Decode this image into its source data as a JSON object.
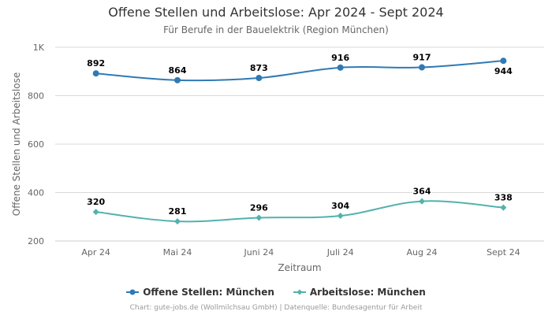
{
  "chart_data": {
    "type": "line",
    "title": "Offene Stellen und Arbeitslose: Apr 2024 - Sept 2024",
    "subtitle": "Für Berufe in der Bauelektrik (Region München)",
    "xlabel": "Zeitraum",
    "ylabel": "Offene Stellen und Arbeitslose",
    "categories": [
      "Apr 24",
      "Mai 24",
      "Juni 24",
      "Juli 24",
      "Aug 24",
      "Sept 24"
    ],
    "ylim": [
      200,
      1000
    ],
    "yticks": [
      200,
      400,
      600,
      800,
      1000
    ],
    "ytick_labels": [
      "200",
      "400",
      "600",
      "800",
      "1K"
    ],
    "grid": true,
    "legend_position": "bottom-center",
    "series": [
      {
        "name": "Offene Stellen: München",
        "values": [
          892,
          864,
          873,
          916,
          917,
          944
        ],
        "color": "#2f7ab5",
        "marker": "circle"
      },
      {
        "name": "Arbeitslose: München",
        "values": [
          320,
          281,
          296,
          304,
          364,
          338
        ],
        "color": "#52b2ae",
        "marker": "diamond"
      }
    ],
    "credits": "Chart: gute-jobs.de (Wollmilchsau GmbH) | Datenquelle: Bundesagentur für Arbeit"
  }
}
